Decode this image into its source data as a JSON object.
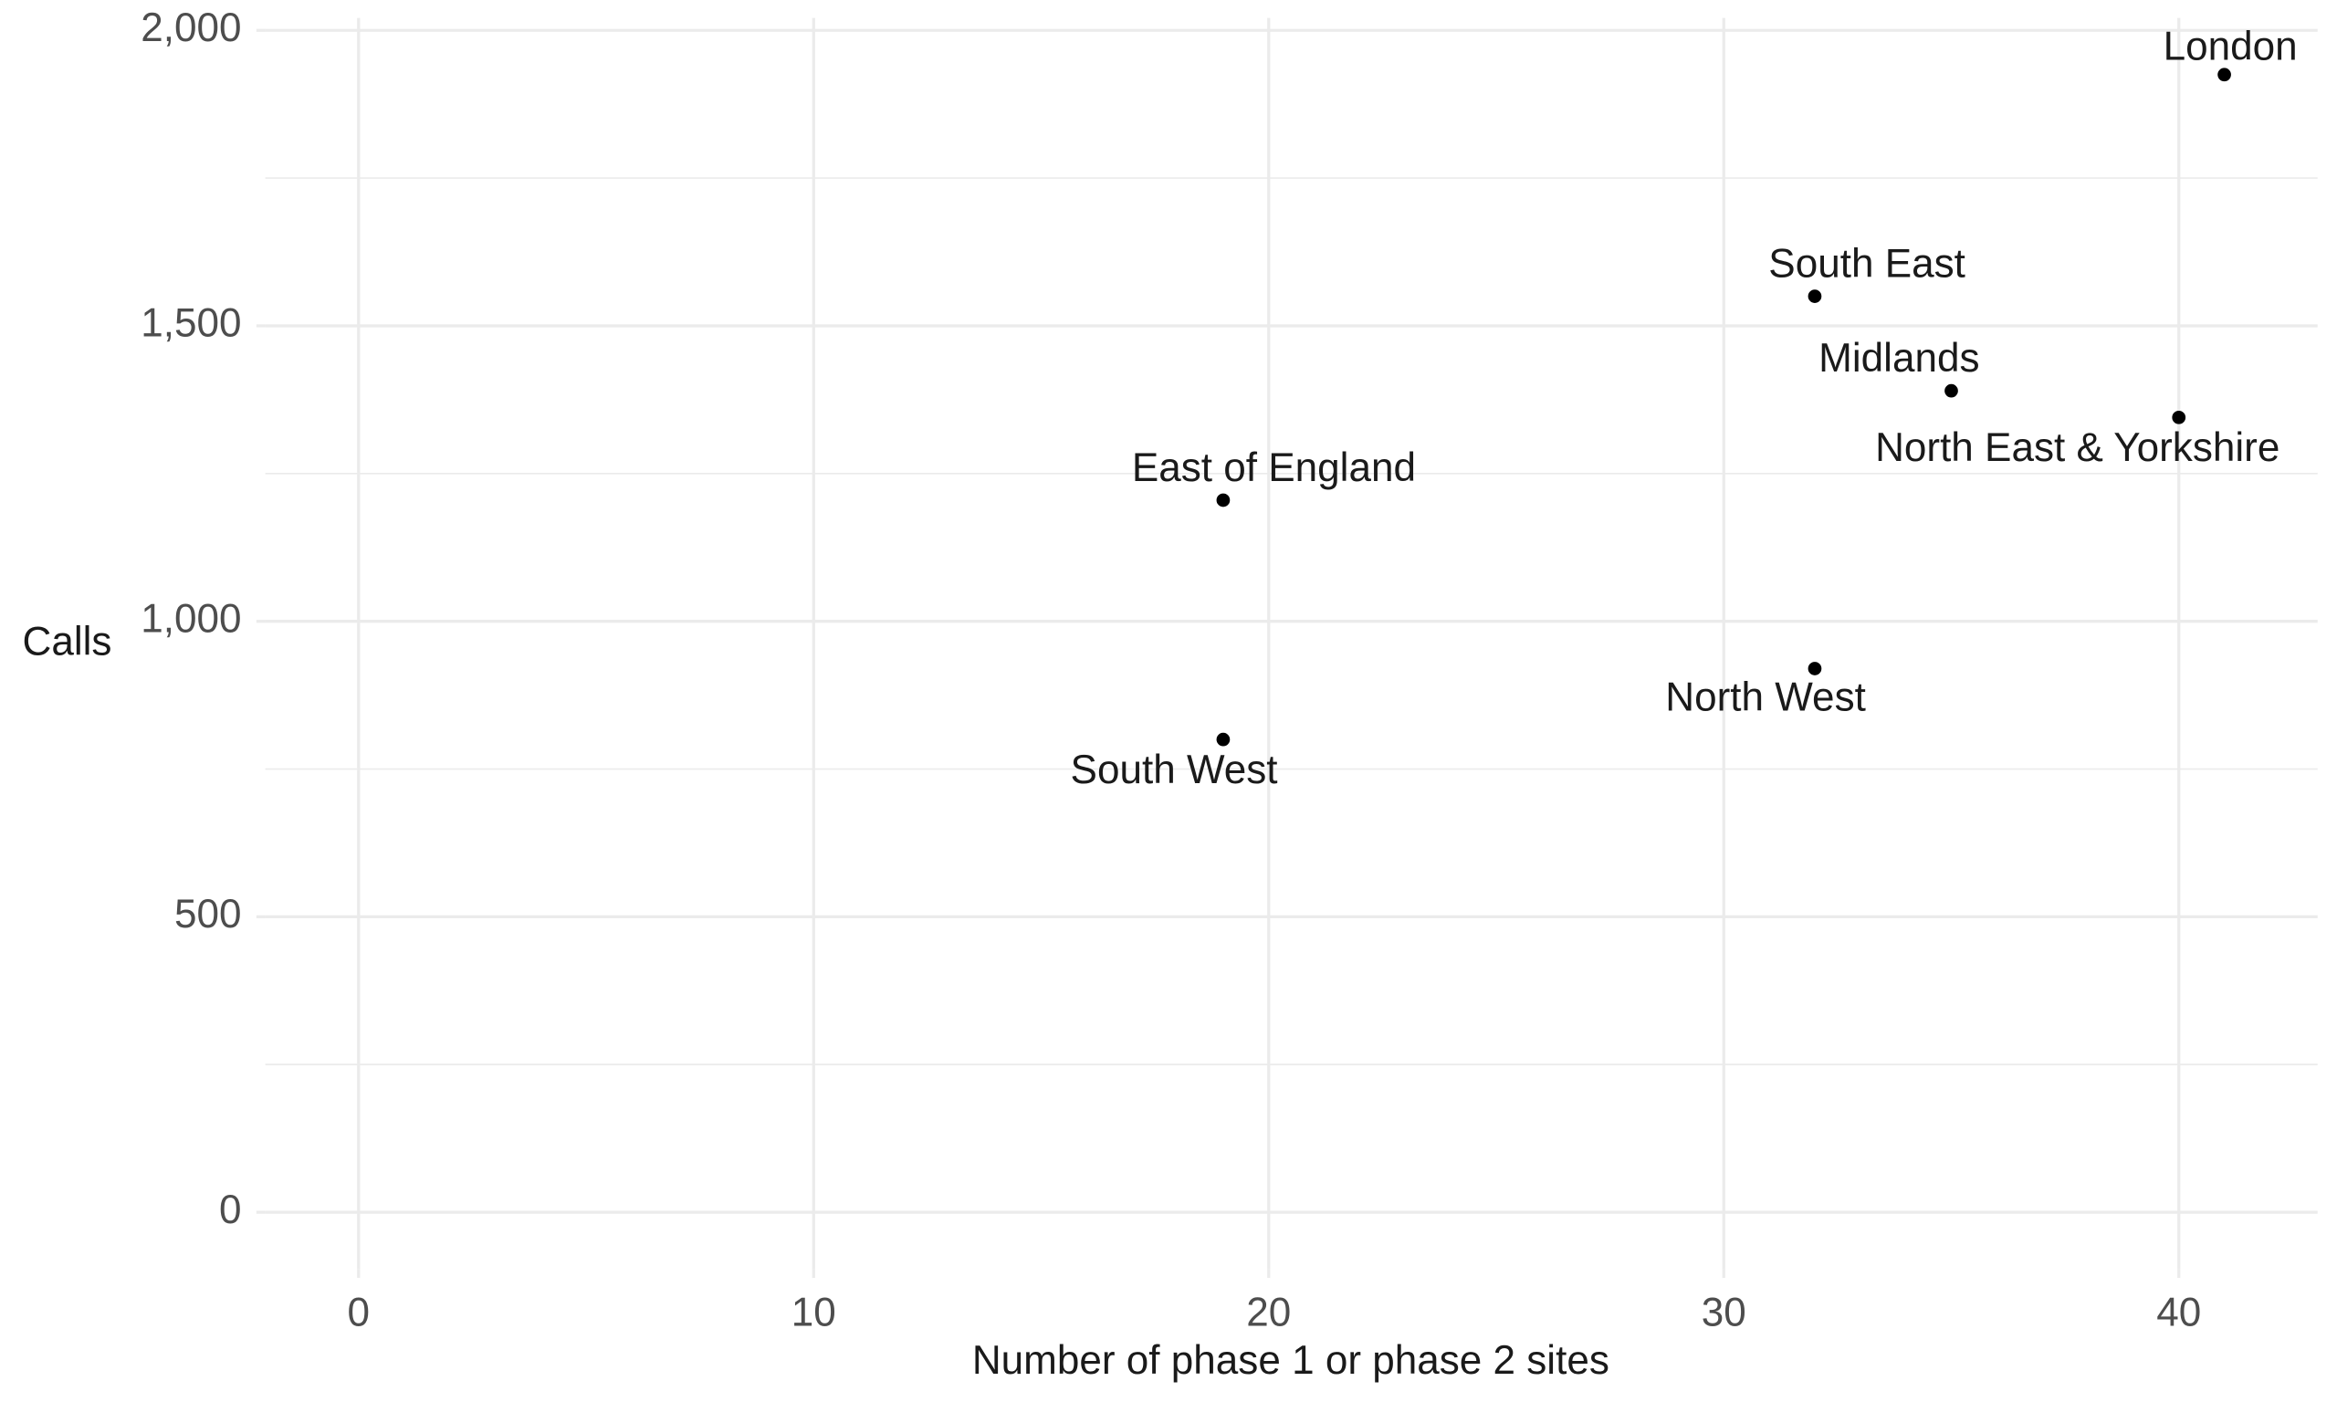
{
  "chart_data": {
    "type": "scatter",
    "x_label": "Number of phase 1 or phase 2 sites",
    "y_label": "Calls",
    "categories": [
      "London",
      "South East",
      "Midlands",
      "North East & Yorkshire",
      "East of England",
      "North West",
      "South West"
    ],
    "x": [
      41,
      32,
      35,
      40,
      19,
      32,
      19
    ],
    "values": [
      1925,
      1550,
      1390,
      1345,
      1205,
      920,
      800
    ],
    "color": "#000000",
    "xlim": [
      -2.05,
      43.05
    ],
    "ylim": [
      -96,
      2021
    ],
    "xticks": [
      0,
      10,
      20,
      30,
      40
    ],
    "yticks": [
      0,
      500,
      {
        "value": 1000,
        "label": "1,000"
      },
      {
        "value": 1500,
        "label": "1,500"
      },
      {
        "value": 2000,
        "label": "2,000"
      }
    ],
    "y_minor_grid": [
      250,
      750,
      1250,
      1750
    ],
    "grid": true
  }
}
